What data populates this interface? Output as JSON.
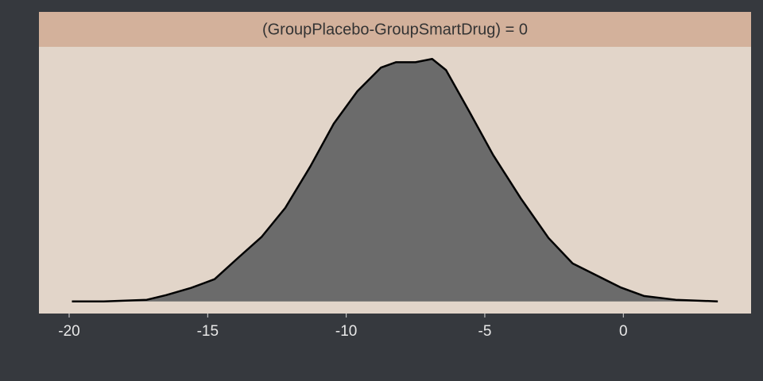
{
  "chart_data": {
    "type": "density",
    "title": "(GroupPlacebo-GroupSmartDrug) = 0",
    "x": [
      -19.9,
      -18.75,
      -17.2,
      -16.5,
      -15.6,
      -14.75,
      -13.9,
      -13.05,
      -12.2,
      -11.3,
      -10.45,
      -9.6,
      -8.75,
      -8.2,
      -7.5,
      -6.9,
      -6.4,
      -5.56,
      -4.7,
      -3.7,
      -2.7,
      -1.83,
      -0.97,
      -0.11,
      0.74,
      1.89,
      3.41
    ],
    "values": [
      0,
      0,
      0.0008,
      0.0031,
      0.0067,
      0.011,
      0.0216,
      0.032,
      0.0463,
      0.0667,
      0.088,
      0.104,
      0.1157,
      0.1184,
      0.1184,
      0.12,
      0.1145,
      0.094,
      0.0725,
      0.051,
      0.0314,
      0.0188,
      0.0129,
      0.007,
      0.0027,
      0.0008,
      0
    ],
    "color": "#6b6b6b",
    "xlim": [
      -21.09,
      4.61
    ],
    "xticks": [
      -20,
      -15,
      -10,
      -5,
      0
    ],
    "ylim": [
      -0.006,
      0.126
    ]
  }
}
